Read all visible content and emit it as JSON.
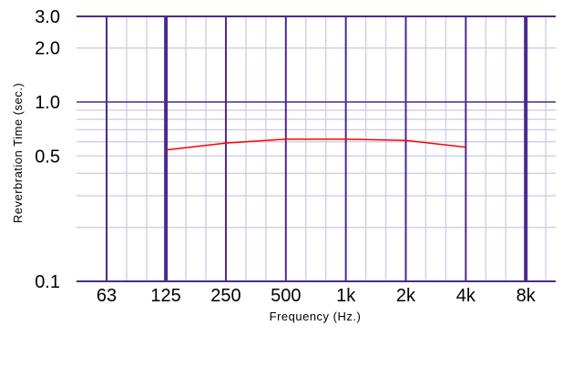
{
  "chart_data": {
    "type": "line",
    "title": "",
    "xlabel": "Frequency (Hz.)",
    "ylabel": "Reverbration Time (sec.)",
    "x_scale": "log",
    "y_scale": "log",
    "xlim": [
      44.5,
      11300
    ],
    "ylim": [
      0.1,
      3.0
    ],
    "grid": true,
    "categories": [
      "63",
      "125",
      "250",
      "500",
      "1k",
      "2k",
      "4k",
      "8k"
    ],
    "x_ticks": [
      63,
      125,
      250,
      500,
      1000,
      2000,
      4000,
      8000
    ],
    "y_ticks": [
      {
        "value": 3.0,
        "label": "3.0"
      },
      {
        "value": 2.0,
        "label": "2.0"
      },
      {
        "value": 1.0,
        "label": "1.0"
      },
      {
        "value": 0.5,
        "label": "0.5"
      },
      {
        "value": 0.1,
        "label": "0.1"
      }
    ],
    "series": [
      {
        "color": "#ff0000",
        "x": [
          125,
          250,
          500,
          1000,
          2000,
          4000
        ],
        "values": [
          0.54,
          0.59,
          0.62,
          0.62,
          0.61,
          0.56
        ]
      }
    ],
    "colors": {
      "major_grid": "#4b2a8c",
      "minor_grid": "#d4d0e6",
      "line": "#ff0000"
    }
  }
}
